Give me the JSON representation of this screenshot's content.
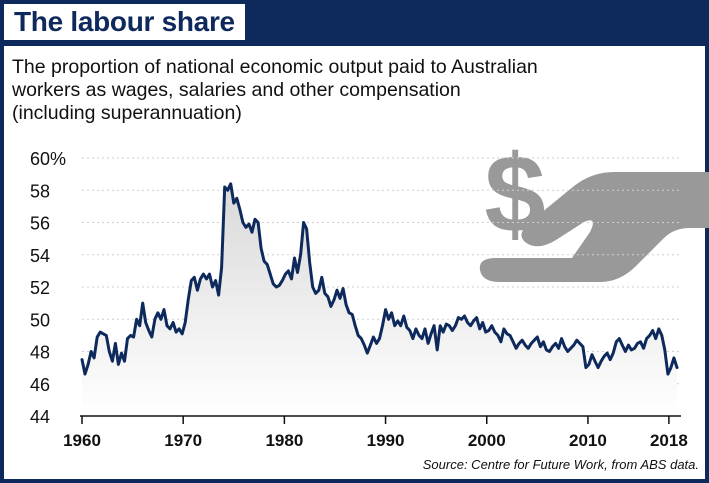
{
  "title": "The labour share",
  "subtitle_lines": [
    "The proportion of national economic output paid to Australian",
    "workers as wages, salaries and other compensation",
    "(including superannuation)"
  ],
  "source": "Source: Centre for Future Work, from ABS data.",
  "colors": {
    "frame": "#0e2a5c",
    "line": "#0e2a5c",
    "fill_top": "#d9d9d9",
    "icon": "#999999",
    "grid": "#cfcfcf"
  },
  "icon": "dollar-hand-icon",
  "chart_data": {
    "type": "line",
    "title": "The labour share",
    "ylabel": "",
    "xlabel": "",
    "xlim": [
      1960,
      2019
    ],
    "ylim": [
      44,
      60
    ],
    "y_ticks": [
      {
        "value": 44,
        "label": "44"
      },
      {
        "value": 46,
        "label": "46"
      },
      {
        "value": 48,
        "label": "48"
      },
      {
        "value": 50,
        "label": "50"
      },
      {
        "value": 52,
        "label": "52"
      },
      {
        "value": 54,
        "label": "54"
      },
      {
        "value": 56,
        "label": "56"
      },
      {
        "value": 58,
        "label": "58"
      },
      {
        "value": 60,
        "label": "60%"
      }
    ],
    "x_ticks": [
      {
        "value": 1960,
        "label": "1960"
      },
      {
        "value": 1970,
        "label": "1970"
      },
      {
        "value": 1980,
        "label": "1980"
      },
      {
        "value": 1990,
        "label": "1990"
      },
      {
        "value": 2000,
        "label": "2000"
      },
      {
        "value": 2010,
        "label": "2010"
      },
      {
        "value": 2018,
        "label": "2018"
      }
    ],
    "grid": true,
    "series": [
      {
        "x": [
          1960.0,
          1960.3,
          1960.6,
          1960.9,
          1961.2,
          1961.5,
          1961.8,
          1962.1,
          1962.4,
          1962.7,
          1963.0,
          1963.3,
          1963.6,
          1963.9,
          1964.2,
          1964.5,
          1964.8,
          1965.1,
          1965.4,
          1965.7,
          1966.0,
          1966.3,
          1966.6,
          1966.9,
          1967.2,
          1967.5,
          1967.8,
          1968.1,
          1968.4,
          1968.7,
          1969.0,
          1969.3,
          1969.6,
          1969.9,
          1970.2,
          1970.5,
          1970.8,
          1971.1,
          1971.4,
          1971.7,
          1972.0,
          1972.3,
          1972.6,
          1972.9,
          1973.2,
          1973.5,
          1973.8,
          1974.1,
          1974.4,
          1974.7,
          1975.0,
          1975.3,
          1975.6,
          1975.9,
          1976.2,
          1976.5,
          1976.8,
          1977.1,
          1977.4,
          1977.7,
          1978.0,
          1978.3,
          1978.6,
          1978.9,
          1979.2,
          1979.5,
          1979.8,
          1980.1,
          1980.4,
          1980.7,
          1981.0,
          1981.3,
          1981.6,
          1981.9,
          1982.2,
          1982.5,
          1982.8,
          1983.1,
          1983.4,
          1983.7,
          1984.0,
          1984.3,
          1984.6,
          1984.9,
          1985.2,
          1985.5,
          1985.8,
          1986.1,
          1986.4,
          1986.7,
          1987.0,
          1987.3,
          1987.6,
          1987.9,
          1988.2,
          1988.5,
          1988.8,
          1989.1,
          1989.4,
          1989.7,
          1990.0,
          1990.3,
          1990.6,
          1990.9,
          1991.2,
          1991.5,
          1991.8,
          1992.1,
          1992.4,
          1992.7,
          1993.0,
          1993.3,
          1993.6,
          1993.9,
          1994.2,
          1994.5,
          1994.8,
          1995.1,
          1995.4,
          1995.7,
          1996.0,
          1996.3,
          1996.6,
          1996.9,
          1997.2,
          1997.5,
          1997.8,
          1998.1,
          1998.4,
          1998.7,
          1999.0,
          1999.3,
          1999.6,
          1999.9,
          2000.2,
          2000.5,
          2000.8,
          2001.1,
          2001.4,
          2001.7,
          2002.0,
          2002.3,
          2002.6,
          2002.9,
          2003.2,
          2003.5,
          2003.8,
          2004.1,
          2004.4,
          2004.7,
          2005.0,
          2005.3,
          2005.6,
          2005.9,
          2006.2,
          2006.5,
          2006.8,
          2007.1,
          2007.4,
          2007.7,
          2008.0,
          2008.3,
          2008.6,
          2008.9,
          2009.2,
          2009.5,
          2009.8,
          2010.1,
          2010.4,
          2010.7,
          2011.0,
          2011.3,
          2011.6,
          2011.9,
          2012.2,
          2012.5,
          2012.8,
          2013.1,
          2013.4,
          2013.7,
          2014.0,
          2014.3,
          2014.6,
          2014.9,
          2015.2,
          2015.5,
          2015.8,
          2016.1,
          2016.4,
          2016.7,
          2017.0,
          2017.3,
          2017.6,
          2017.9,
          2018.2,
          2018.5,
          2018.8
        ],
        "y": [
          47.5,
          46.6,
          47.2,
          48.0,
          47.6,
          48.9,
          49.2,
          49.1,
          49.0,
          48.0,
          47.4,
          48.5,
          47.2,
          47.9,
          47.4,
          48.8,
          49.0,
          48.9,
          50.0,
          49.6,
          51.0,
          49.8,
          49.3,
          48.9,
          50.0,
          50.4,
          50.0,
          50.6,
          49.6,
          49.4,
          49.8,
          49.2,
          49.4,
          49.1,
          49.8,
          51.2,
          52.4,
          52.6,
          51.8,
          52.5,
          52.8,
          52.5,
          52.8,
          52.0,
          52.4,
          51.5,
          53.2,
          58.2,
          58.0,
          58.4,
          57.2,
          57.5,
          56.8,
          56.0,
          55.7,
          55.9,
          55.4,
          56.2,
          56.0,
          54.4,
          53.6,
          53.4,
          52.8,
          52.2,
          52.0,
          52.1,
          52.4,
          52.8,
          53.0,
          52.5,
          53.8,
          52.9,
          54.0,
          56.0,
          55.6,
          53.5,
          52.0,
          51.6,
          51.8,
          52.6,
          51.6,
          51.4,
          50.8,
          51.2,
          51.8,
          51.3,
          51.9,
          50.9,
          50.4,
          50.3,
          49.6,
          49.0,
          48.8,
          48.4,
          47.9,
          48.4,
          48.9,
          48.5,
          48.8,
          49.6,
          50.6,
          50.0,
          50.4,
          49.6,
          49.9,
          49.6,
          50.2,
          49.5,
          49.3,
          48.8,
          49.4,
          49.0,
          48.8,
          49.4,
          48.5,
          49.1,
          49.6,
          48.1,
          49.6,
          49.2,
          49.7,
          49.6,
          49.3,
          49.6,
          50.1,
          50.0,
          50.2,
          49.8,
          49.6,
          49.9,
          50.1,
          49.4,
          49.8,
          49.2,
          49.3,
          49.6,
          49.2,
          49.0,
          48.6,
          49.4,
          49.1,
          49.0,
          48.6,
          48.2,
          48.5,
          48.7,
          48.4,
          48.2,
          48.5,
          48.7,
          48.9,
          48.3,
          48.6,
          48.1,
          48.0,
          48.3,
          48.5,
          48.2,
          48.8,
          48.3,
          48.0,
          48.2,
          48.4,
          48.7,
          48.5,
          48.3,
          47.0,
          47.2,
          47.8,
          47.4,
          47.0,
          47.4,
          47.7,
          47.9,
          47.5,
          47.9,
          48.6,
          48.8,
          48.4,
          48.0,
          48.4,
          48.1,
          48.2,
          48.5,
          48.6,
          48.2,
          48.8,
          49.0,
          49.3,
          48.8,
          49.4,
          49.0,
          48.1,
          46.6,
          47.0,
          47.6,
          47.0
        ]
      }
    ]
  }
}
